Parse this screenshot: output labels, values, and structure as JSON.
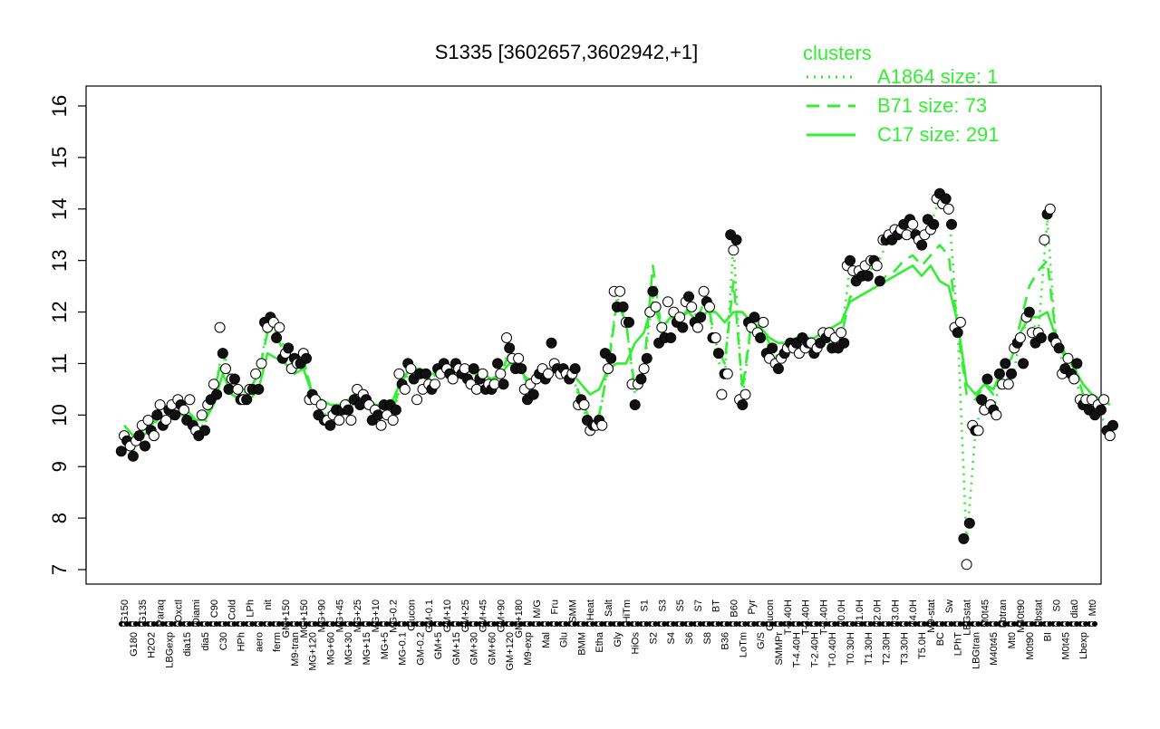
{
  "chart_data": {
    "type": "line",
    "title": "S1335 [3602657,3602942,+1]",
    "xlabel": "",
    "ylabel": "",
    "ylim": [
      7,
      16
    ],
    "yticks": [
      7,
      8,
      9,
      10,
      11,
      12,
      13,
      14,
      15,
      16
    ],
    "xlabels": [
      "G150",
      "G180",
      "G135",
      "H2O2",
      "Paraq",
      "LBGexp",
      "Oxctl",
      "dia15",
      "Diami",
      "dia5",
      "C90",
      "C30",
      "Cold",
      "HPh",
      "LPh",
      "aero",
      "nit",
      "ferm",
      "GM+150",
      "M9-tran",
      "MG+150",
      "MG+120",
      "MG+90",
      "MG+60",
      "MG+45",
      "MG+30",
      "MG+25",
      "MG+15",
      "MG+10",
      "MG+5",
      "MG-0.2",
      "MG-0.1",
      "Glucon",
      "GM-0.2",
      "GM-0.1",
      "GM+5",
      "GM+10",
      "GM+15",
      "GM+25",
      "GM+30",
      "GM+45",
      "GM+60",
      "GM+90",
      "GM+120",
      "GM+180",
      "M9-exp",
      "M/G",
      "Mal",
      "Fru",
      "Glu",
      "SMM",
      "BMM",
      "Heat",
      "Etha",
      "Salt",
      "Gly",
      "HiTm",
      "HiOs",
      "S1",
      "S2",
      "S3",
      "S4",
      "S5",
      "S6",
      "S7",
      "S8",
      "BT",
      "B36",
      "B60",
      "LoTm",
      "Pyr",
      "G/S",
      "Glucon",
      "SMMPr",
      "T-5.40H",
      "T-4.40H",
      "T-3.40H",
      "T-2.40H",
      "T-1.40H",
      "T-0.40H",
      "T0.0H",
      "T0.30H",
      "T1.0H",
      "T1.30H",
      "T2.0H",
      "T2.30H",
      "T3.0H",
      "T3.30H",
      "T4.0H",
      "T5.0H",
      "M9-stat",
      "BC",
      "Sw",
      "LPhT",
      "LBGstat",
      "LBGtran",
      "M0t45",
      "M40t45",
      "Lbtran",
      "Mt0",
      "M40t90",
      "M0t90",
      "Lbstat",
      "BI",
      "S0",
      "M0t45",
      "dia0",
      "Lbexp",
      "Mt0"
    ],
    "series": [
      {
        "name": "A1864 size: 1",
        "style": "dotted",
        "values": [
          9.5,
          9.3,
          9.6,
          9.7,
          10.0,
          9.9,
          10.1,
          10.1,
          9.8,
          9.8,
          10.4,
          11.3,
          10.6,
          10.4,
          10.5,
          10.8,
          11.7,
          11.6,
          11.3,
          11.0,
          11.1,
          10.3,
          10.1,
          9.9,
          10.0,
          10.1,
          10.3,
          10.2,
          10.0,
          9.9,
          10.0,
          10.7,
          10.9,
          10.8,
          10.7,
          10.8,
          10.9,
          10.8,
          10.9,
          10.8,
          10.7,
          10.6,
          10.8,
          11.3,
          11.0,
          10.6,
          10.6,
          10.9,
          11.1,
          10.8,
          10.8,
          10.2,
          9.8,
          9.9,
          11.0,
          12.3,
          11.8,
          10.4,
          10.9,
          12.3,
          11.6,
          11.9,
          11.8,
          12.1,
          11.9,
          12.3,
          11.2,
          10.7,
          13.3,
          10.3,
          11.8,
          11.7,
          11.3,
          11.0,
          11.2,
          11.3,
          11.3,
          11.3,
          11.4,
          11.4,
          11.5,
          12.9,
          12.8,
          12.8,
          12.9,
          13.3,
          13.4,
          13.6,
          13.7,
          13.4,
          13.7,
          14.2,
          14.0,
          11.7,
          7.5,
          9.7,
          10.4,
          10.1,
          10.8,
          10.6,
          11.5,
          11.9,
          11.6,
          13.8,
          11.4,
          10.9,
          10.8,
          10.2,
          10.1,
          10.0,
          9.6
        ]
      },
      {
        "name": "B71 size: 73",
        "style": "dashed",
        "values": [
          9.6,
          9.5,
          9.6,
          9.7,
          10.0,
          9.9,
          10.0,
          10.1,
          9.9,
          9.9,
          10.4,
          11.2,
          10.6,
          10.5,
          10.5,
          10.8,
          11.6,
          11.5,
          11.2,
          11.0,
          11.1,
          10.4,
          10.2,
          10.0,
          10.1,
          10.1,
          10.3,
          10.2,
          10.1,
          10.0,
          10.1,
          10.7,
          10.8,
          10.8,
          10.7,
          10.8,
          10.8,
          10.8,
          10.8,
          10.8,
          10.7,
          10.6,
          10.8,
          11.2,
          11.0,
          10.6,
          10.6,
          10.9,
          11.0,
          10.8,
          10.8,
          10.3,
          9.9,
          10.0,
          10.9,
          12.2,
          11.8,
          10.5,
          10.9,
          12.9,
          11.6,
          11.9,
          11.8,
          12.1,
          11.9,
          12.3,
          11.4,
          11.0,
          12.6,
          10.5,
          11.8,
          11.7,
          11.4,
          11.1,
          11.2,
          11.3,
          11.3,
          11.3,
          11.4,
          11.4,
          11.5,
          12.3,
          12.3,
          12.4,
          12.5,
          12.7,
          12.8,
          13.0,
          13.1,
          12.9,
          13.1,
          13.3,
          13.1,
          11.7,
          10.4,
          10.3,
          10.6,
          10.4,
          10.9,
          11.1,
          11.8,
          12.5,
          12.8,
          13.0,
          11.5,
          11.1,
          11.0,
          10.4,
          10.3,
          10.2,
          10.1
        ]
      },
      {
        "name": "C17 size: 291",
        "style": "solid",
        "values": [
          9.8,
          9.6,
          9.7,
          9.8,
          10.0,
          9.9,
          10.0,
          10.0,
          9.9,
          9.9,
          10.2,
          10.8,
          10.4,
          10.3,
          10.3,
          10.5,
          11.2,
          11.1,
          11.0,
          10.8,
          10.9,
          10.4,
          10.3,
          10.2,
          10.2,
          10.3,
          10.3,
          10.3,
          10.2,
          10.2,
          10.3,
          10.7,
          10.9,
          10.9,
          10.8,
          10.8,
          10.9,
          10.9,
          10.9,
          10.8,
          10.8,
          10.7,
          10.8,
          11.0,
          10.9,
          10.7,
          10.7,
          10.8,
          11.0,
          10.8,
          10.8,
          10.6,
          10.4,
          10.5,
          10.9,
          11.0,
          11.0,
          11.4,
          11.6,
          12.2,
          11.7,
          11.9,
          11.9,
          12.0,
          11.8,
          12.0,
          12.0,
          11.8,
          12.0,
          12.0,
          11.8,
          11.7,
          11.5,
          11.4,
          11.4,
          11.5,
          11.5,
          11.5,
          11.6,
          11.7,
          11.8,
          12.2,
          12.3,
          12.4,
          12.5,
          12.6,
          12.7,
          12.8,
          12.9,
          12.7,
          12.9,
          12.6,
          12.5,
          11.8,
          10.6,
          10.4,
          10.6,
          10.5,
          10.9,
          11.1,
          11.6,
          11.9,
          11.9,
          12.0,
          11.5,
          11.2,
          10.9,
          10.6,
          10.4,
          10.3,
          10.2
        ]
      }
    ],
    "points": [
      [
        9.3,
        9.6,
        9.5
      ],
      [
        9.4,
        9.2,
        9.5
      ],
      [
        9.6,
        9.8,
        9.4
      ],
      [
        9.9,
        9.7,
        9.6
      ],
      [
        10.0,
        10.2,
        9.8
      ],
      [
        9.9,
        10.1,
        10.2
      ],
      [
        10.0,
        10.3,
        10.2
      ],
      [
        10.1,
        9.9,
        10.3
      ],
      [
        9.8,
        9.7,
        9.6
      ],
      [
        10.0,
        9.7,
        10.2
      ],
      [
        10.3,
        10.6,
        10.4
      ],
      [
        11.7,
        11.2,
        10.9
      ],
      [
        10.5,
        10.7,
        10.7
      ],
      [
        10.5,
        10.3,
        10.3
      ],
      [
        10.3,
        10.5,
        10.5
      ],
      [
        10.8,
        10.5,
        11.0
      ],
      [
        11.8,
        11.7,
        11.9
      ],
      [
        11.8,
        11.5,
        11.7
      ],
      [
        11.1,
        11.2,
        11.3
      ],
      [
        10.9,
        11.1,
        11.0
      ],
      [
        11.0,
        11.2,
        11.1
      ],
      [
        10.3,
        10.4,
        10.3
      ],
      [
        10.0,
        10.2,
        9.9
      ],
      [
        9.9,
        9.8,
        10.0
      ],
      [
        10.1,
        9.9,
        10.1
      ],
      [
        10.2,
        10.1,
        9.9
      ],
      [
        10.3,
        10.5,
        10.2
      ],
      [
        10.4,
        10.3,
        10.2
      ],
      [
        9.9,
        10.1,
        10.0
      ],
      [
        9.8,
        10.2,
        10.0
      ],
      [
        10.2,
        9.9,
        10.1
      ],
      [
        10.8,
        10.6,
        10.5
      ],
      [
        11.0,
        10.9,
        10.7
      ],
      [
        10.3,
        10.8,
        10.5
      ],
      [
        10.8,
        10.6,
        10.5
      ],
      [
        10.6,
        10.9,
        10.8
      ],
      [
        11.0,
        10.9,
        10.8
      ],
      [
        10.7,
        11.0,
        10.9
      ],
      [
        10.8,
        10.9,
        10.7
      ],
      [
        10.6,
        10.9,
        10.5
      ],
      [
        10.7,
        10.8,
        10.5
      ],
      [
        10.6,
        10.5,
        10.6
      ],
      [
        11.0,
        10.8,
        10.6
      ],
      [
        11.5,
        11.3,
        11.1
      ],
      [
        10.9,
        11.1,
        10.9
      ],
      [
        10.5,
        10.3,
        10.6
      ],
      [
        10.4,
        10.7,
        10.8
      ],
      [
        10.9,
        10.7,
        10.8
      ],
      [
        11.4,
        11.0,
        10.9
      ],
      [
        10.8,
        10.9,
        10.8
      ],
      [
        10.7,
        10.8,
        10.9
      ],
      [
        10.2,
        10.3,
        10.2
      ],
      [
        9.9,
        9.7,
        9.8
      ],
      [
        9.8,
        9.9,
        9.8
      ],
      [
        11.2,
        10.9,
        11.1
      ],
      [
        12.4,
        12.1,
        12.4
      ],
      [
        12.1,
        11.8,
        11.8
      ],
      [
        10.6,
        10.2,
        10.6
      ],
      [
        10.7,
        10.9,
        11.1
      ],
      [
        12.0,
        12.4,
        12.1
      ],
      [
        11.4,
        11.7,
        11.5
      ],
      [
        12.2,
        11.5,
        12.0
      ],
      [
        11.8,
        11.9,
        11.7
      ],
      [
        12.2,
        12.3,
        12.1
      ],
      [
        11.8,
        11.7,
        11.9
      ],
      [
        12.4,
        12.2,
        12.1
      ],
      [
        11.5,
        11.5,
        11.2
      ],
      [
        10.4,
        10.8,
        10.8
      ],
      [
        13.5,
        13.2,
        13.4
      ],
      [
        10.3,
        10.2,
        10.4
      ],
      [
        11.8,
        11.7,
        11.9
      ],
      [
        11.6,
        11.5,
        11.8
      ],
      [
        11.2,
        11.1,
        11.3
      ],
      [
        11.0,
        10.9,
        11.1
      ],
      [
        11.2,
        11.3,
        11.4
      ],
      [
        11.3,
        11.4,
        11.2
      ],
      [
        11.5,
        11.3,
        11.4
      ],
      [
        11.4,
        11.2,
        11.3
      ],
      [
        11.4,
        11.6,
        11.5
      ],
      [
        11.6,
        11.3,
        11.5
      ],
      [
        11.3,
        11.6,
        11.4
      ],
      [
        12.9,
        13.0,
        12.8
      ],
      [
        12.6,
        12.8,
        12.7
      ],
      [
        12.9,
        12.7,
        13.0
      ],
      [
        13.0,
        12.9,
        12.6
      ],
      [
        13.4,
        13.4,
        13.5
      ],
      [
        13.4,
        13.6,
        13.5
      ],
      [
        13.6,
        13.7,
        13.5
      ],
      [
        13.8,
        13.7,
        13.5
      ],
      [
        13.4,
        13.3,
        13.5
      ],
      [
        13.8,
        13.6,
        13.7
      ],
      [
        14.2,
        14.3,
        14.1
      ],
      [
        14.2,
        14.0,
        13.7
      ],
      [
        11.7,
        11.6,
        11.8
      ],
      [
        7.6,
        7.1,
        7.9
      ],
      [
        9.8,
        9.7,
        9.7
      ],
      [
        10.3,
        10.1,
        10.7
      ],
      [
        10.2,
        10.1,
        10.0
      ],
      [
        10.8,
        10.6,
        11.0
      ],
      [
        10.6,
        10.8,
        11.3
      ],
      [
        11.4,
        11.5,
        11.0
      ],
      [
        11.9,
        12.0,
        11.6
      ],
      [
        11.4,
        11.6,
        11.5
      ],
      [
        13.4,
        13.9,
        14.0
      ],
      [
        11.5,
        11.4,
        11.3
      ],
      [
        10.8,
        10.9,
        11.1
      ],
      [
        10.8,
        10.7,
        11.0
      ],
      [
        10.3,
        10.2,
        10.3
      ],
      [
        10.1,
        10.3,
        10.0
      ],
      [
        10.2,
        10.1,
        10.3
      ],
      [
        9.7,
        9.6,
        9.8
      ]
    ],
    "legend": {
      "title": "clusters",
      "placement": "top-right",
      "entries": [
        "A1864 size: 1",
        "B71 size: 73",
        "C17 size: 291"
      ]
    },
    "colors": {
      "series": "#33ee33",
      "points_filled": "#111111",
      "points_open": "#ffffff",
      "axis": "#000000"
    }
  }
}
